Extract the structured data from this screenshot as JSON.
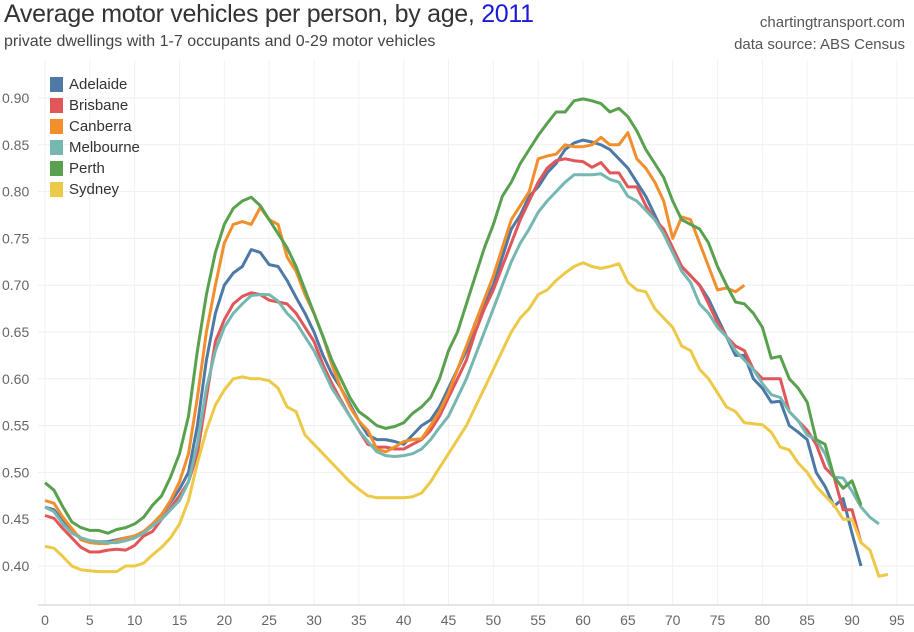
{
  "header": {
    "title": "Average motor vehicles per person, by age, ",
    "title_year": "2011",
    "subtitle": "private dwellings with 1-7 occupants and 0-29 motor vehicles",
    "site": "chartingtransport.com",
    "source": "data source: ABS Census"
  },
  "chart_data": {
    "type": "line",
    "title": "Average motor vehicles per person, by age, 2011",
    "xlabel": "",
    "ylabel": "",
    "xlim": [
      -1,
      96
    ],
    "ylim": [
      0.362,
      0.93
    ],
    "x_ticks": [
      "0",
      "5",
      "10",
      "15",
      "20",
      "25",
      "30",
      "35",
      "40",
      "45",
      "50",
      "55",
      "60",
      "65",
      "70",
      "75",
      "80",
      "85",
      "90",
      "95"
    ],
    "y_ticks": [
      "0.40",
      "0.45",
      "0.50",
      "0.55",
      "0.60",
      "0.65",
      "0.70",
      "0.75",
      "0.80",
      "0.85",
      "0.90"
    ],
    "grid": true,
    "legend_position": "top-left",
    "series": [
      {
        "name": "Adelaide",
        "color": "#4e79a7",
        "start_age": 0,
        "values": [
          0.463,
          0.46,
          0.448,
          0.437,
          0.43,
          0.427,
          0.426,
          0.426,
          0.428,
          0.43,
          0.432,
          0.436,
          0.445,
          0.455,
          0.468,
          0.482,
          0.5,
          0.55,
          0.62,
          0.67,
          0.7,
          0.713,
          0.72,
          0.738,
          0.735,
          0.722,
          0.72,
          0.705,
          0.687,
          0.67,
          0.65,
          0.625,
          0.605,
          0.59,
          0.573,
          0.555,
          0.54,
          0.535,
          0.535,
          0.533,
          0.53,
          0.54,
          0.55,
          0.556,
          0.57,
          0.59,
          0.61,
          0.63,
          0.66,
          0.68,
          0.7,
          0.73,
          0.76,
          0.775,
          0.795,
          0.805,
          0.82,
          0.83,
          0.845,
          0.852,
          0.855,
          0.853,
          0.85,
          0.845,
          0.835,
          0.825,
          0.81,
          0.795,
          0.775,
          0.755,
          0.735,
          0.72,
          0.71,
          0.7,
          0.685,
          0.665,
          0.645,
          0.625,
          0.625,
          0.6,
          0.59,
          0.575,
          0.576,
          0.55,
          0.543,
          0.535,
          0.5,
          0.485,
          0.464,
          0.472,
          0.435,
          0.4
        ]
      },
      {
        "name": "Brisbane",
        "color": "#e15759",
        "start_age": 0,
        "values": [
          0.454,
          0.451,
          0.44,
          0.43,
          0.42,
          0.415,
          0.415,
          0.417,
          0.418,
          0.417,
          0.422,
          0.432,
          0.437,
          0.45,
          0.462,
          0.475,
          0.49,
          0.52,
          0.58,
          0.64,
          0.663,
          0.68,
          0.688,
          0.692,
          0.69,
          0.684,
          0.682,
          0.68,
          0.67,
          0.655,
          0.64,
          0.615,
          0.595,
          0.577,
          0.56,
          0.545,
          0.53,
          0.527,
          0.527,
          0.525,
          0.525,
          0.53,
          0.535,
          0.545,
          0.56,
          0.58,
          0.6,
          0.62,
          0.65,
          0.675,
          0.695,
          0.72,
          0.745,
          0.77,
          0.79,
          0.81,
          0.825,
          0.833,
          0.835,
          0.833,
          0.832,
          0.826,
          0.831,
          0.82,
          0.82,
          0.805,
          0.805,
          0.785,
          0.77,
          0.76,
          0.74,
          0.72,
          0.71,
          0.7,
          0.68,
          0.66,
          0.645,
          0.635,
          0.63,
          0.61,
          0.6,
          0.6,
          0.6,
          0.565,
          0.555,
          0.545,
          0.53,
          0.505,
          0.495,
          0.46,
          0.46,
          0.425
        ]
      },
      {
        "name": "Canberra",
        "color": "#f28e2b",
        "start_age": 0,
        "values": [
          0.47,
          0.467,
          0.452,
          0.44,
          0.428,
          0.425,
          0.424,
          0.424,
          0.427,
          0.43,
          0.432,
          0.437,
          0.445,
          0.455,
          0.47,
          0.49,
          0.52,
          0.58,
          0.65,
          0.7,
          0.745,
          0.765,
          0.768,
          0.765,
          0.783,
          0.77,
          0.765,
          0.73,
          0.715,
          0.69,
          0.67,
          0.645,
          0.615,
          0.59,
          0.57,
          0.555,
          0.545,
          0.525,
          0.522,
          0.527,
          0.533,
          0.535,
          0.536,
          0.55,
          0.565,
          0.585,
          0.61,
          0.635,
          0.66,
          0.685,
          0.71,
          0.74,
          0.77,
          0.785,
          0.8,
          0.835,
          0.838,
          0.84,
          0.85,
          0.848,
          0.848,
          0.85,
          0.858,
          0.85,
          0.85,
          0.863,
          0.835,
          0.825,
          0.81,
          0.79,
          0.75,
          0.773,
          0.77,
          0.745,
          0.72,
          0.695,
          0.697,
          0.693,
          0.7
        ]
      },
      {
        "name": "Melbourne",
        "color": "#76b7b2",
        "start_age": 0,
        "values": [
          0.463,
          0.458,
          0.445,
          0.435,
          0.43,
          0.427,
          0.426,
          0.425,
          0.425,
          0.427,
          0.43,
          0.435,
          0.443,
          0.45,
          0.46,
          0.47,
          0.49,
          0.53,
          0.59,
          0.63,
          0.655,
          0.67,
          0.68,
          0.689,
          0.69,
          0.69,
          0.683,
          0.67,
          0.66,
          0.645,
          0.63,
          0.61,
          0.59,
          0.575,
          0.56,
          0.545,
          0.533,
          0.522,
          0.518,
          0.517,
          0.518,
          0.52,
          0.525,
          0.535,
          0.548,
          0.56,
          0.58,
          0.6,
          0.625,
          0.65,
          0.675,
          0.7,
          0.725,
          0.745,
          0.76,
          0.778,
          0.79,
          0.8,
          0.81,
          0.818,
          0.818,
          0.818,
          0.819,
          0.813,
          0.81,
          0.795,
          0.79,
          0.78,
          0.77,
          0.755,
          0.735,
          0.715,
          0.703,
          0.68,
          0.67,
          0.655,
          0.645,
          0.63,
          0.62,
          0.61,
          0.595,
          0.583,
          0.58,
          0.565,
          0.555,
          0.54,
          0.535,
          0.52,
          0.495,
          0.494,
          0.48,
          0.463,
          0.452,
          0.445
        ]
      },
      {
        "name": "Perth",
        "color": "#59a14f",
        "start_age": 0,
        "values": [
          0.489,
          0.481,
          0.463,
          0.447,
          0.441,
          0.438,
          0.438,
          0.435,
          0.439,
          0.441,
          0.445,
          0.452,
          0.465,
          0.475,
          0.495,
          0.52,
          0.56,
          0.63,
          0.69,
          0.735,
          0.765,
          0.782,
          0.79,
          0.794,
          0.785,
          0.77,
          0.755,
          0.74,
          0.72,
          0.695,
          0.67,
          0.645,
          0.62,
          0.6,
          0.58,
          0.565,
          0.558,
          0.55,
          0.547,
          0.549,
          0.553,
          0.563,
          0.57,
          0.58,
          0.6,
          0.63,
          0.65,
          0.68,
          0.71,
          0.74,
          0.765,
          0.795,
          0.81,
          0.83,
          0.845,
          0.86,
          0.873,
          0.885,
          0.885,
          0.897,
          0.899,
          0.897,
          0.894,
          0.885,
          0.889,
          0.88,
          0.865,
          0.845,
          0.83,
          0.815,
          0.79,
          0.77,
          0.765,
          0.76,
          0.745,
          0.72,
          0.7,
          0.682,
          0.68,
          0.67,
          0.655,
          0.622,
          0.624,
          0.6,
          0.59,
          0.575,
          0.535,
          0.53,
          0.495,
          0.483,
          0.491,
          0.465
        ]
      },
      {
        "name": "Sydney",
        "color": "#edc948",
        "start_age": 0,
        "values": [
          0.421,
          0.419,
          0.41,
          0.4,
          0.396,
          0.395,
          0.394,
          0.394,
          0.394,
          0.4,
          0.4,
          0.403,
          0.412,
          0.42,
          0.43,
          0.445,
          0.47,
          0.51,
          0.545,
          0.572,
          0.588,
          0.6,
          0.602,
          0.6,
          0.6,
          0.598,
          0.59,
          0.57,
          0.565,
          0.54,
          0.53,
          0.52,
          0.51,
          0.5,
          0.49,
          0.482,
          0.475,
          0.473,
          0.473,
          0.473,
          0.473,
          0.474,
          0.478,
          0.49,
          0.505,
          0.52,
          0.535,
          0.55,
          0.57,
          0.59,
          0.61,
          0.63,
          0.65,
          0.665,
          0.675,
          0.69,
          0.695,
          0.705,
          0.713,
          0.72,
          0.724,
          0.72,
          0.718,
          0.72,
          0.723,
          0.703,
          0.695,
          0.693,
          0.675,
          0.665,
          0.655,
          0.635,
          0.63,
          0.61,
          0.6,
          0.585,
          0.57,
          0.565,
          0.553,
          0.552,
          0.551,
          0.543,
          0.527,
          0.524,
          0.51,
          0.5,
          0.485,
          0.475,
          0.465,
          0.45,
          0.45,
          0.425,
          0.417,
          0.389,
          0.391
        ]
      }
    ]
  }
}
